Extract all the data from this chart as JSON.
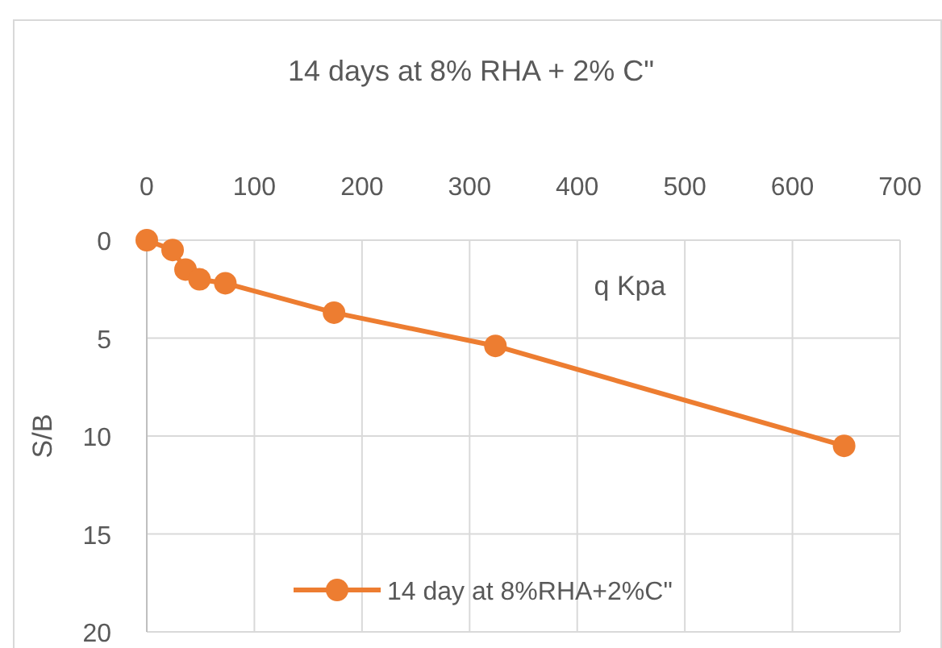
{
  "chart_data": {
    "type": "line",
    "title": "14 days at 8% RHA + 2% C\"",
    "xlabel": "q Kpa",
    "ylabel": "S/B",
    "series": [
      {
        "name": "14 day at 8%RHA+2%C\"",
        "color": "#ed7d31",
        "x": [
          0,
          24,
          36,
          49,
          73,
          174,
          324,
          648
        ],
        "values": [
          0,
          0.5,
          1.5,
          2.0,
          2.2,
          3.7,
          5.4,
          10.5
        ]
      }
    ],
    "xlim": [
      0,
      700
    ],
    "xticks": [
      0,
      100,
      200,
      300,
      400,
      500,
      600,
      700
    ],
    "ylim": [
      20,
      0
    ],
    "yticks": [
      0,
      5,
      10,
      15,
      20
    ],
    "grid": true,
    "legend": "bottom",
    "marker": "circle",
    "line_style": "solid"
  }
}
